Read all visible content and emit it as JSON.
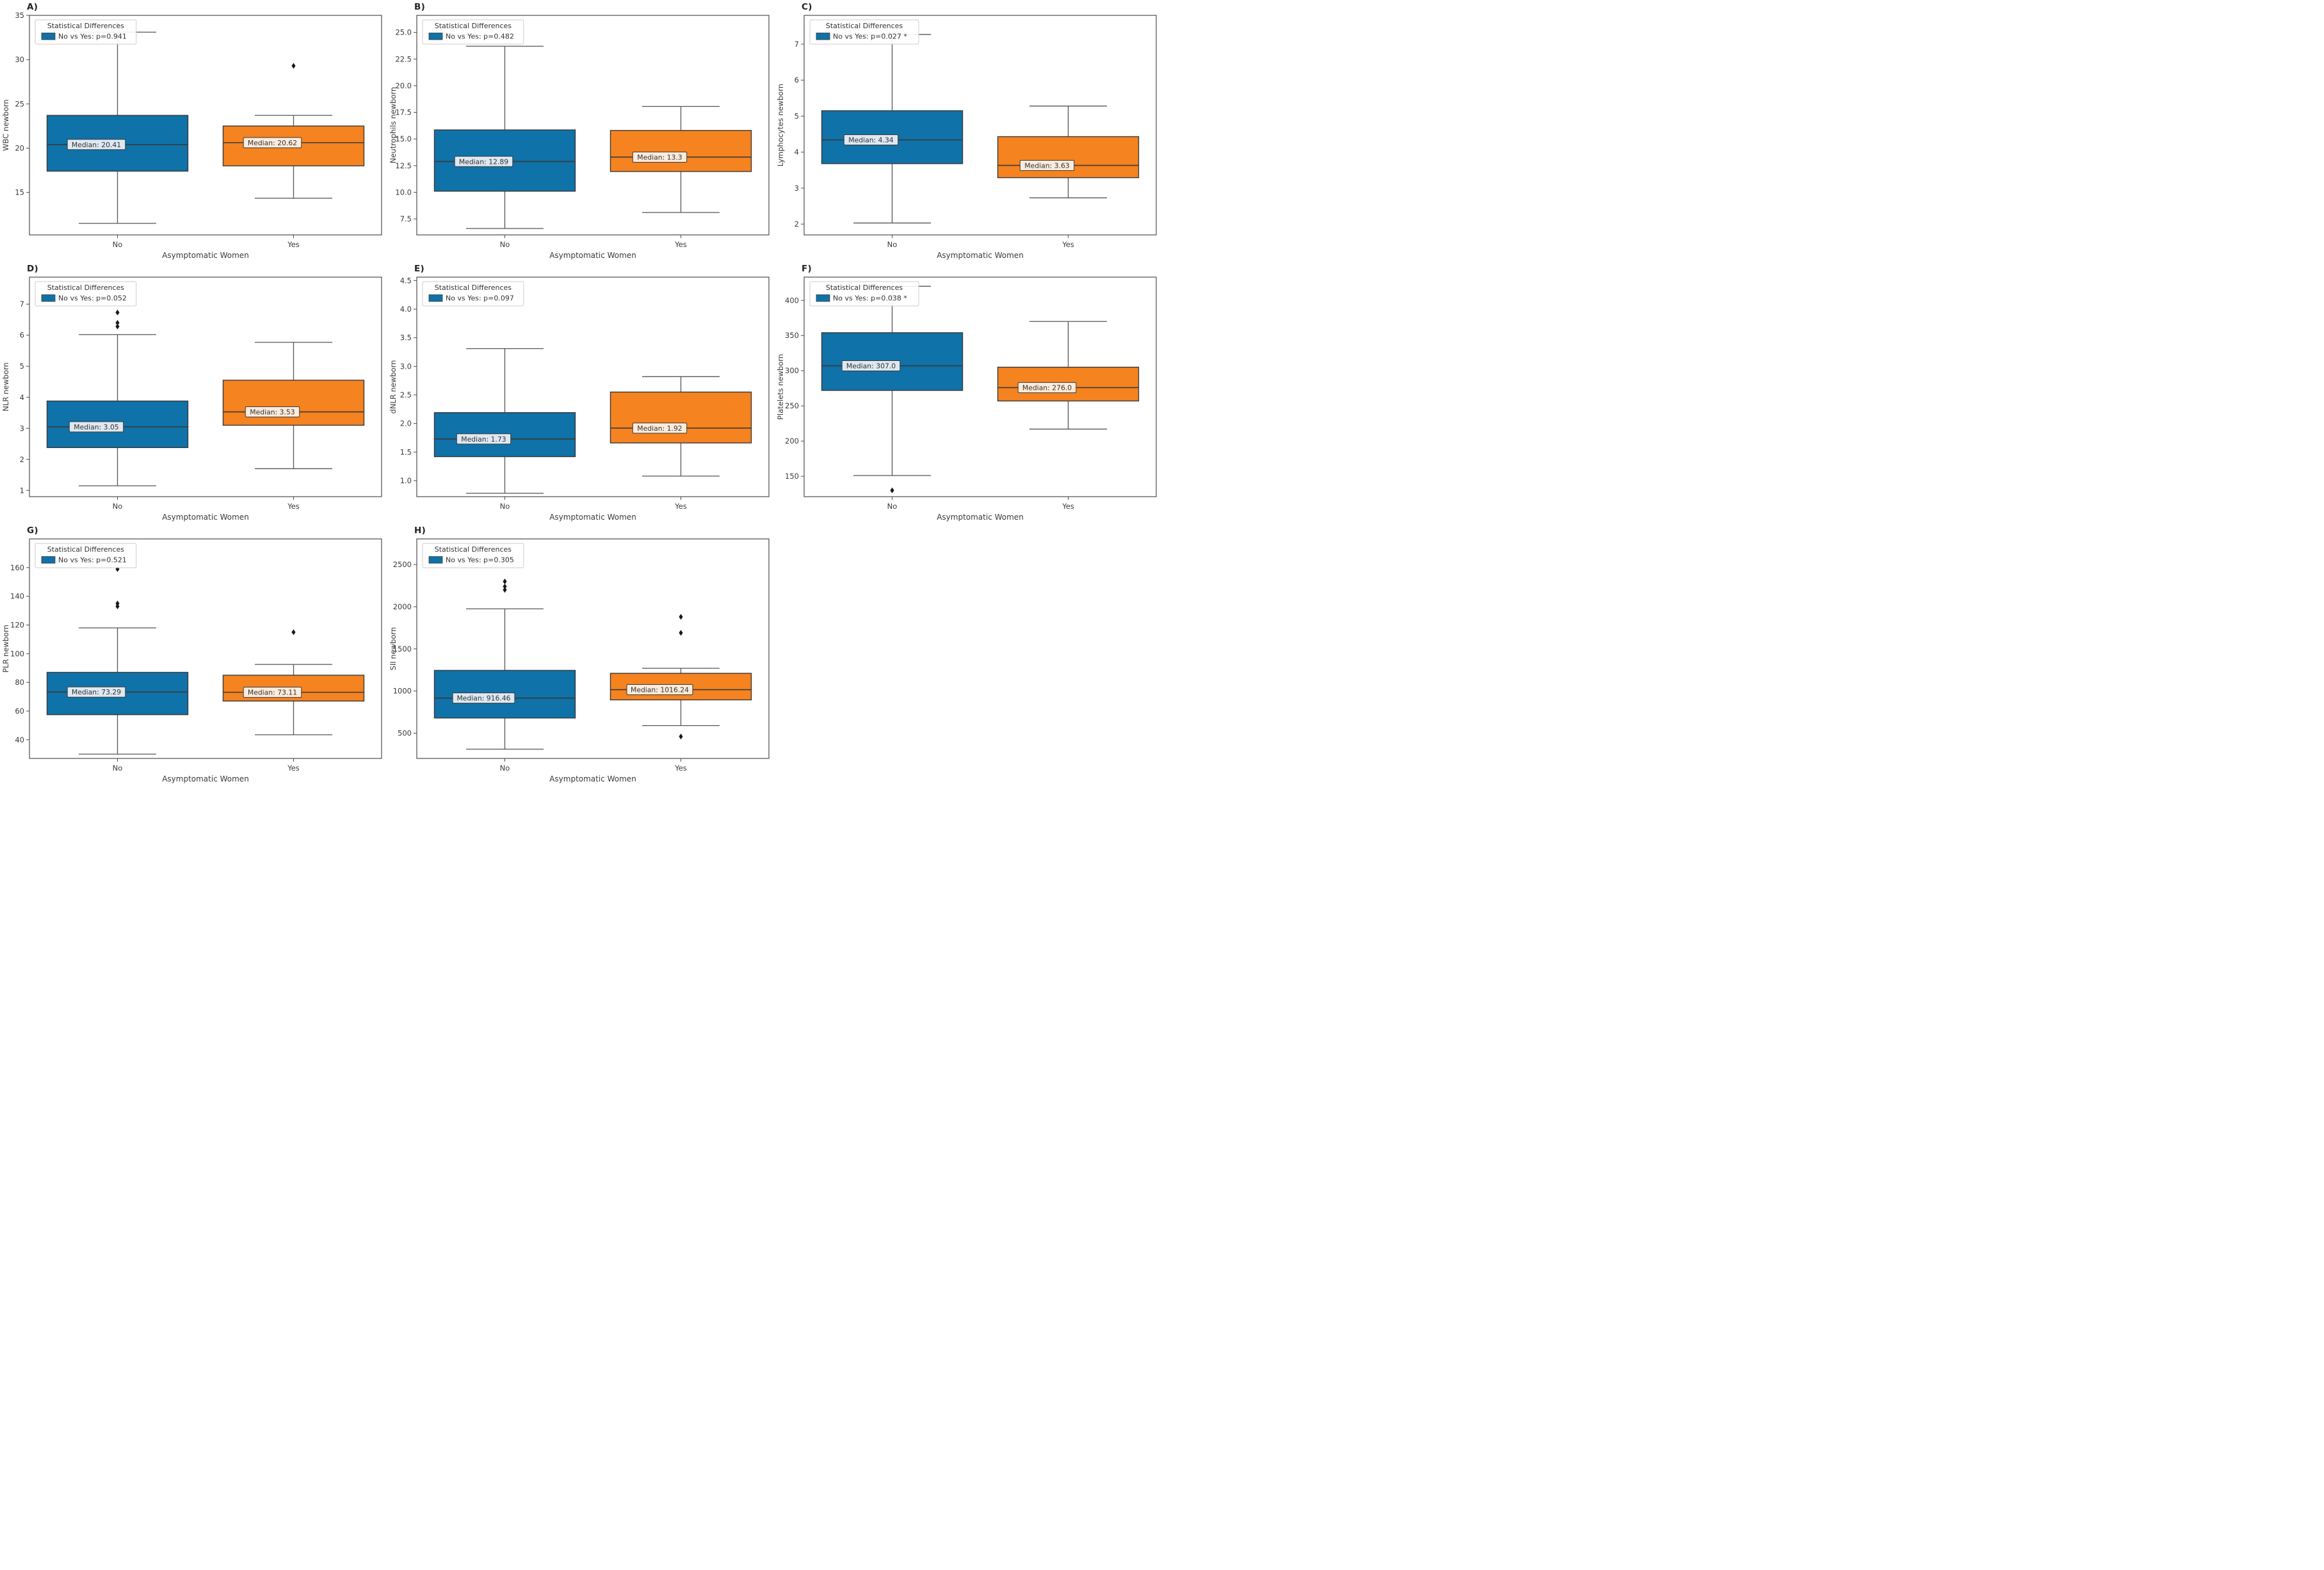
{
  "figure": {
    "background": "#ffffff",
    "grid": {
      "rows": 3,
      "cols": 3,
      "occupied_panels": 8
    },
    "shared_xlabel": "Asymptomatic Women",
    "shared_categories": [
      "No",
      "Yes"
    ]
  },
  "colors": {
    "no_box": "#0f72a8",
    "yes_box": "#f5831f",
    "no_annot_bg": "#dde8f1",
    "yes_annot_bg": "#fcebdb",
    "box_edge": "#3a3a3a",
    "whisker": "#555555",
    "axis": "#4d4d4d",
    "tick_text": "#3a3a3a",
    "legend_border": "#cccccc",
    "legend_text": "#333333",
    "outlier": "#1a1a1a"
  },
  "chart_data": [
    {
      "type": "box",
      "panel_label": "A)",
      "ylabel": "WBC newborn",
      "xlabel": "Asymptomatic Women",
      "categories": [
        "No",
        "Yes"
      ],
      "legend": {
        "title": "Statistical Differences",
        "entry": "No vs Yes: p=0.941",
        "position": "upper left"
      },
      "ylim": [
        10.2,
        35.0
      ],
      "yticks": [
        15,
        20,
        25,
        30,
        35
      ],
      "ytick_labels": [
        "15",
        "20",
        "25",
        "30",
        "35"
      ],
      "grid": false,
      "groups": [
        {
          "category": "No",
          "median_label": "Median: 20.41",
          "whislo": 11.5,
          "q1": 17.4,
          "med": 20.41,
          "q3": 23.7,
          "whishi": 33.1,
          "outliers": [
            33.9
          ]
        },
        {
          "category": "Yes",
          "median_label": "Median: 20.62",
          "whislo": 14.35,
          "q1": 18.0,
          "med": 20.62,
          "q3": 22.5,
          "whishi": 23.7,
          "outliers": [
            29.3
          ]
        }
      ]
    },
    {
      "type": "box",
      "panel_label": "B)",
      "ylabel": "Neutrophils newborn",
      "xlabel": "Asymptomatic Women",
      "categories": [
        "No",
        "Yes"
      ],
      "legend": {
        "title": "Statistical Differences",
        "entry": "No vs Yes: p=0.482",
        "position": "upper left"
      },
      "ylim": [
        6.0,
        26.6
      ],
      "yticks": [
        7.5,
        10.0,
        12.5,
        15.0,
        17.5,
        20.0,
        22.5,
        25.0
      ],
      "ytick_labels": [
        "7.5",
        "10.0",
        "12.5",
        "15.0",
        "17.5",
        "20.0",
        "22.5",
        "25.0"
      ],
      "grid": false,
      "groups": [
        {
          "category": "No",
          "median_label": "Median: 12.89",
          "whislo": 6.6,
          "q1": 10.1,
          "med": 12.89,
          "q3": 15.85,
          "whishi": 23.7,
          "outliers": []
        },
        {
          "category": "Yes",
          "median_label": "Median: 13.3",
          "whislo": 8.1,
          "q1": 11.95,
          "med": 13.3,
          "q3": 15.8,
          "whishi": 18.05,
          "outliers": []
        }
      ]
    },
    {
      "type": "box",
      "panel_label": "C)",
      "ylabel": "Lymphocytes newborn",
      "xlabel": "Asymptomatic Women",
      "categories": [
        "No",
        "Yes"
      ],
      "legend": {
        "title": "Statistical Differences",
        "entry": "No vs Yes: p=0.027 *",
        "position": "upper left"
      },
      "ylim": [
        1.7,
        7.8
      ],
      "yticks": [
        2,
        3,
        4,
        5,
        6,
        7
      ],
      "ytick_labels": [
        "2",
        "3",
        "4",
        "5",
        "6",
        "7"
      ],
      "grid": false,
      "groups": [
        {
          "category": "No",
          "median_label": "Median: 4.34",
          "whislo": 2.03,
          "q1": 3.68,
          "med": 4.34,
          "q3": 5.15,
          "whishi": 7.27,
          "outliers": []
        },
        {
          "category": "Yes",
          "median_label": "Median: 3.63",
          "whislo": 2.73,
          "q1": 3.29,
          "med": 3.63,
          "q3": 4.43,
          "whishi": 5.28,
          "outliers": []
        }
      ]
    },
    {
      "type": "box",
      "panel_label": "D)",
      "ylabel": "NLR newborn",
      "xlabel": "Asymptomatic Women",
      "categories": [
        "No",
        "Yes"
      ],
      "legend": {
        "title": "Statistical Differences",
        "entry": "No vs Yes: p=0.052",
        "position": "upper left"
      },
      "ylim": [
        0.8,
        7.87
      ],
      "yticks": [
        1,
        2,
        3,
        4,
        5,
        6,
        7
      ],
      "ytick_labels": [
        "1",
        "2",
        "3",
        "4",
        "5",
        "6",
        "7"
      ],
      "grid": false,
      "groups": [
        {
          "category": "No",
          "median_label": "Median: 3.05",
          "whislo": 1.15,
          "q1": 2.38,
          "med": 3.05,
          "q3": 3.88,
          "whishi": 6.02,
          "outliers": [
            6.28,
            6.4,
            6.73
          ]
        },
        {
          "category": "Yes",
          "median_label": "Median: 3.53",
          "whislo": 1.7,
          "q1": 3.1,
          "med": 3.53,
          "q3": 4.55,
          "whishi": 5.77,
          "outliers": []
        }
      ]
    },
    {
      "type": "box",
      "panel_label": "E)",
      "ylabel": "dNLR newborn",
      "xlabel": "Asymptomatic Women",
      "categories": [
        "No",
        "Yes"
      ],
      "legend": {
        "title": "Statistical Differences",
        "entry": "No vs Yes: p=0.097",
        "position": "upper left"
      },
      "ylim": [
        0.72,
        4.56
      ],
      "yticks": [
        1.0,
        1.5,
        2.0,
        2.5,
        3.0,
        3.5,
        4.0,
        4.5
      ],
      "ytick_labels": [
        "1.0",
        "1.5",
        "2.0",
        "2.5",
        "3.0",
        "3.5",
        "4.0",
        "4.5"
      ],
      "grid": false,
      "groups": [
        {
          "category": "No",
          "median_label": "Median: 1.73",
          "whislo": 0.78,
          "q1": 1.42,
          "med": 1.73,
          "q3": 2.19,
          "whishi": 3.31,
          "outliers": []
        },
        {
          "category": "Yes",
          "median_label": "Median: 1.92",
          "whislo": 1.08,
          "q1": 1.66,
          "med": 1.92,
          "q3": 2.55,
          "whishi": 2.82,
          "outliers": []
        }
      ]
    },
    {
      "type": "box",
      "panel_label": "F)",
      "ylabel": "Platelets newborn",
      "xlabel": "Asymptomatic Women",
      "categories": [
        "No",
        "Yes"
      ],
      "legend": {
        "title": "Statistical Differences",
        "entry": "No vs Yes: p=0.038 *",
        "position": "upper left"
      },
      "ylim": [
        121,
        433
      ],
      "yticks": [
        150,
        200,
        250,
        300,
        350,
        400
      ],
      "ytick_labels": [
        "150",
        "200",
        "250",
        "300",
        "350",
        "400"
      ],
      "grid": false,
      "groups": [
        {
          "category": "No",
          "median_label": "Median: 307.0",
          "whislo": 151,
          "q1": 272,
          "med": 307.0,
          "q3": 354,
          "whishi": 420,
          "outliers": [
            130
          ]
        },
        {
          "category": "Yes",
          "median_label": "Median: 276.0",
          "whislo": 217,
          "q1": 257,
          "med": 276.0,
          "q3": 305,
          "whishi": 370,
          "outliers": []
        }
      ]
    },
    {
      "type": "box",
      "panel_label": "G)",
      "ylabel": "PLR newborn",
      "xlabel": "Asymptomatic Women",
      "categories": [
        "No",
        "Yes"
      ],
      "legend": {
        "title": "Statistical Differences",
        "entry": "No vs Yes: p=0.521",
        "position": "upper left"
      },
      "ylim": [
        27,
        180
      ],
      "yticks": [
        40,
        60,
        80,
        100,
        120,
        140,
        160
      ],
      "ytick_labels": [
        "40",
        "60",
        "80",
        "100",
        "120",
        "140",
        "160"
      ],
      "grid": false,
      "groups": [
        {
          "category": "No",
          "median_label": "Median: 73.29",
          "whislo": 30,
          "q1": 57.5,
          "med": 73.29,
          "q3": 87,
          "whishi": 118,
          "outliers": [
            133,
            135,
            159
          ]
        },
        {
          "category": "Yes",
          "median_label": "Median: 73.11",
          "whislo": 43.5,
          "q1": 67,
          "med": 73.11,
          "q3": 85,
          "whishi": 92.5,
          "outliers": [
            115
          ]
        }
      ]
    },
    {
      "type": "box",
      "panel_label": "H)",
      "ylabel": "SII newborn",
      "xlabel": "Asymptomatic Women",
      "categories": [
        "No",
        "Yes"
      ],
      "legend": {
        "title": "Statistical Differences",
        "entry": "No vs Yes: p=0.305",
        "position": "upper left"
      },
      "ylim": [
        200,
        2805
      ],
      "yticks": [
        500,
        1000,
        1500,
        2000,
        2500
      ],
      "ytick_labels": [
        "500",
        "1000",
        "1500",
        "2000",
        "2500"
      ],
      "grid": false,
      "groups": [
        {
          "category": "No",
          "median_label": "Median: 916.46",
          "whislo": 310,
          "q1": 680,
          "med": 916.46,
          "q3": 1245,
          "whishi": 1975,
          "outliers": [
            2200,
            2240,
            2300
          ]
        },
        {
          "category": "Yes",
          "median_label": "Median: 1016.24",
          "whislo": 590,
          "q1": 895,
          "med": 1016.24,
          "q3": 1210,
          "whishi": 1270,
          "outliers": [
            460,
            1690,
            1880
          ]
        }
      ]
    }
  ]
}
